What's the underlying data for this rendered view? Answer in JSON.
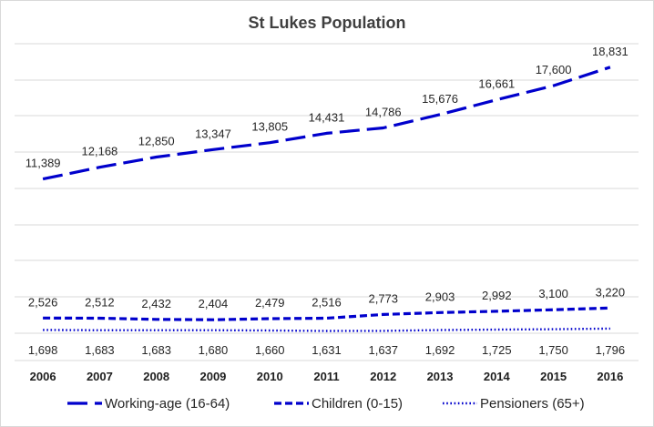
{
  "chart_data": {
    "type": "line",
    "title": "St Lukes Population",
    "xlabel": "",
    "ylabel": "",
    "categories": [
      "2006",
      "2007",
      "2008",
      "2009",
      "2010",
      "2011",
      "2012",
      "2013",
      "2014",
      "2015",
      "2016"
    ],
    "ylim": [
      0,
      20000
    ],
    "grid": "horizontal",
    "legend": "bottom",
    "series": [
      {
        "name": "Working-age (16-64)",
        "values": [
          11389,
          12168,
          12850,
          13347,
          13805,
          14431,
          14786,
          15676,
          16661,
          17600,
          18831
        ],
        "labels": [
          "11,389",
          "12,168",
          "12,850",
          "13,347",
          "13,805",
          "14,431",
          "14,786",
          "15,676",
          "16,661",
          "17,600",
          "18,831"
        ],
        "color": "#0000cc",
        "style": "long-dash",
        "label_position": "above"
      },
      {
        "name": "Children (0-15)",
        "values": [
          2526,
          2512,
          2432,
          2404,
          2479,
          2516,
          2773,
          2903,
          2992,
          3100,
          3220
        ],
        "labels": [
          "2,526",
          "2,512",
          "2,432",
          "2,404",
          "2,479",
          "2,516",
          "2,773",
          "2,903",
          "2,992",
          "3,100",
          "3,220"
        ],
        "color": "#0000cc",
        "style": "dash",
        "label_position": "above"
      },
      {
        "name": "Pensioners (65+)",
        "values": [
          1698,
          1683,
          1683,
          1680,
          1660,
          1631,
          1637,
          1692,
          1725,
          1750,
          1796
        ],
        "labels": [
          "1,698",
          "1,683",
          "1,683",
          "1,680",
          "1,660",
          "1,631",
          "1,637",
          "1,692",
          "1,725",
          "1,750",
          "1,796"
        ],
        "color": "#0000cc",
        "style": "dot",
        "label_position": "below"
      }
    ]
  }
}
